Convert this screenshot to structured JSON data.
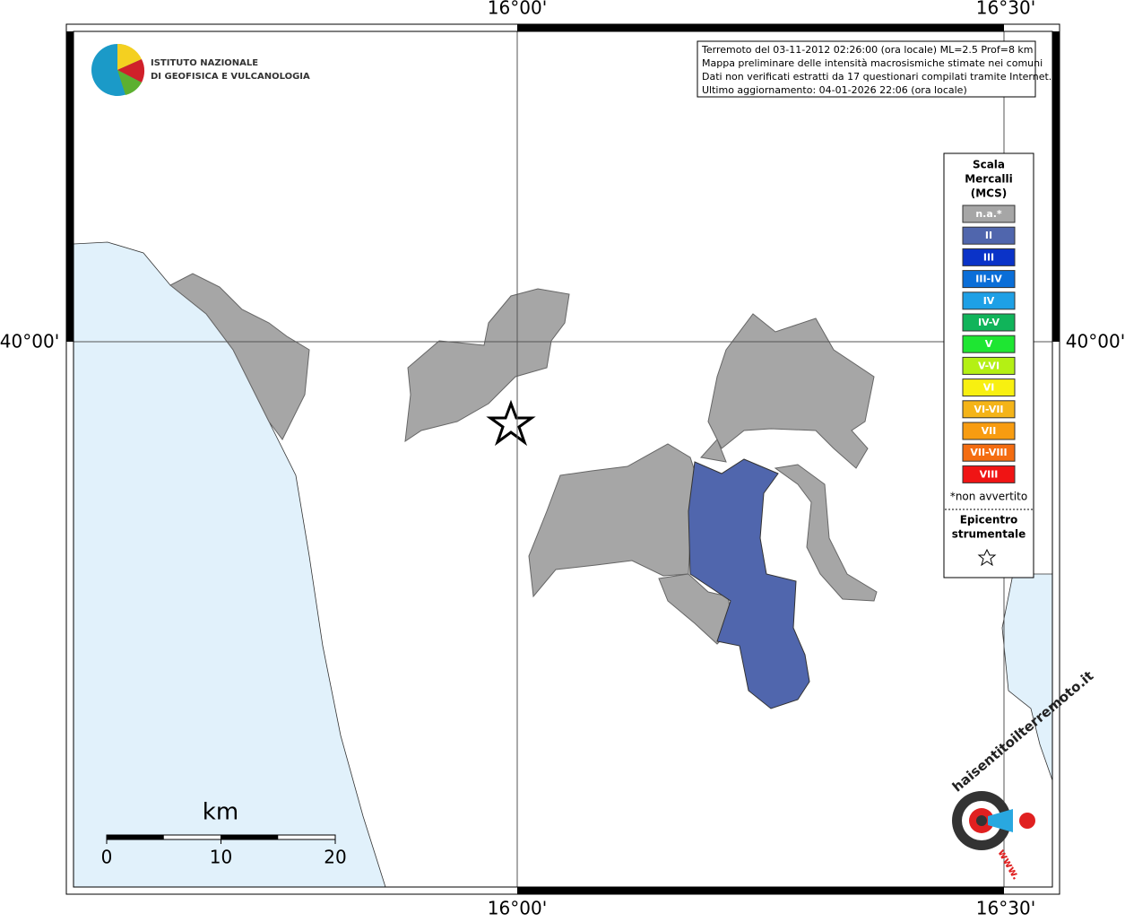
{
  "frame": {
    "lon_labels": [
      "16°00'",
      "16°30'"
    ],
    "lat_labels": [
      "40°00'"
    ]
  },
  "logo": {
    "line1": "ISTITUTO NAZIONALE",
    "line2": "DI GEOFISICA E VULCANOLOGIA"
  },
  "info": {
    "lines": [
      "Terremoto del 03-11-2012 02:26:00 (ora locale) ML=2.5 Prof=8 km",
      "Mappa preliminare delle intensità macrosismiche stimate nei comuni",
      "Dati non verificati estratti da 17 questionari compilati tramite Internet.",
      "Ultimo aggiornamento: 04-01-2026 22:06 (ora locale)"
    ]
  },
  "legend": {
    "title": [
      "Scala",
      "Mercalli",
      "(MCS)"
    ],
    "items": [
      {
        "label": "n.a.*",
        "color": "#a6a6a6"
      },
      {
        "label": "II",
        "color": "#5066ad"
      },
      {
        "label": "III",
        "color": "#0a33c8"
      },
      {
        "label": "III-IV",
        "color": "#0a6ed8"
      },
      {
        "label": "IV",
        "color": "#1ea0e6"
      },
      {
        "label": "IV-V",
        "color": "#10b45a"
      },
      {
        "label": "V",
        "color": "#1ee632"
      },
      {
        "label": "V-VI",
        "color": "#b4f014"
      },
      {
        "label": "VI",
        "color": "#f8f010"
      },
      {
        "label": "VI-VII",
        "color": "#f4b418"
      },
      {
        "label": "VII",
        "color": "#f89c10"
      },
      {
        "label": "VII-VIII",
        "color": "#f46c10"
      },
      {
        "label": "VIII",
        "color": "#f01414"
      }
    ],
    "note": "*non avvertito",
    "epicenter": [
      "Epicentro",
      "strumentale"
    ]
  },
  "scale_bar": {
    "unit": "km",
    "ticks": [
      0,
      10,
      20
    ]
  },
  "badge": {
    "text": "haisentitoilterremoto.it",
    "www": "www."
  }
}
